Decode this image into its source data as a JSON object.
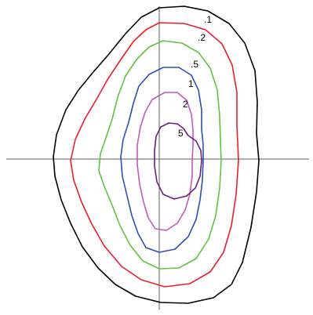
{
  "diagram": {
    "type": "contour-plot",
    "axes": {
      "horizontal": true,
      "vertical": true,
      "color": "#5c5c5c"
    },
    "contours": [
      {
        "level": 0.1,
        "label": ".1",
        "color": "#000000"
      },
      {
        "level": 0.2,
        "label": ".2",
        "color": "#e8202a"
      },
      {
        "level": 0.5,
        "label": ".5",
        "color": "#5fc33e"
      },
      {
        "level": 1,
        "label": "1",
        "color": "#2f4fb0"
      },
      {
        "level": 2,
        "label": "2",
        "color": "#c25ab8"
      },
      {
        "level": 5,
        "label": "5",
        "color": "#6b1f7f"
      }
    ]
  }
}
